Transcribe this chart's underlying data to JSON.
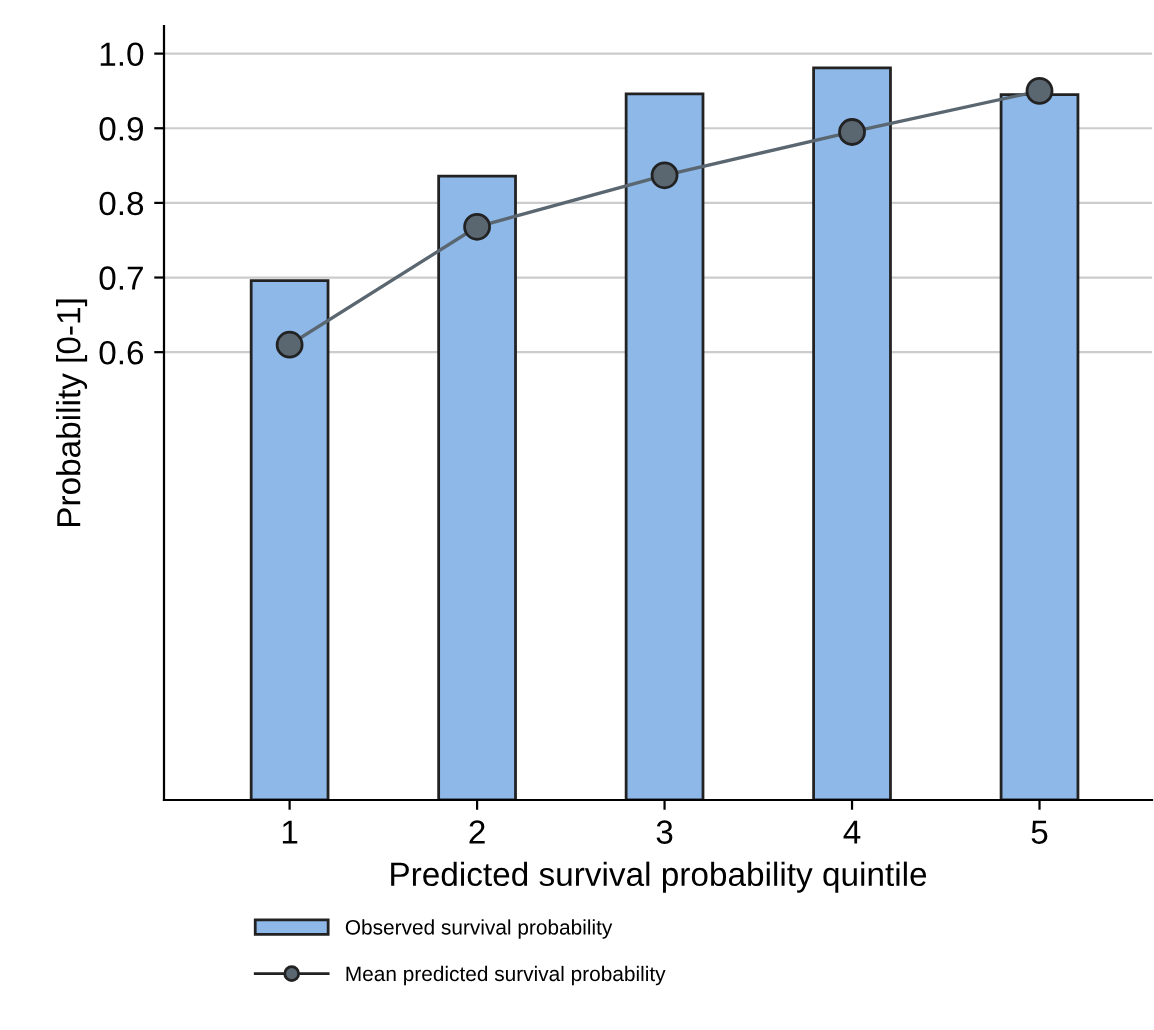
{
  "chart_data": {
    "type": "bar",
    "xlabel": "Predicted survival probability quintile",
    "ylabel": "Probability [0-1]",
    "categories": [
      "1",
      "2",
      "3",
      "4",
      "5"
    ],
    "series": [
      {
        "name": "Observed survival probability",
        "color": "#8db8e8",
        "values": [
          0.696,
          0.836,
          0.946,
          0.981,
          0.945
        ]
      },
      {
        "name": "Mean predicted survival probability",
        "type": "line",
        "color": "#5a6670",
        "values": [
          0.61,
          0.768,
          0.837,
          0.895,
          0.95
        ]
      }
    ],
    "ylim": [
      0,
      1.037
    ],
    "yticks": [
      0.6,
      0.7,
      0.8,
      0.9,
      {
        "value": 1,
        "label": "1.0"
      }
    ],
    "grid": "y",
    "legend": "bottom",
    "marker": "circle"
  }
}
